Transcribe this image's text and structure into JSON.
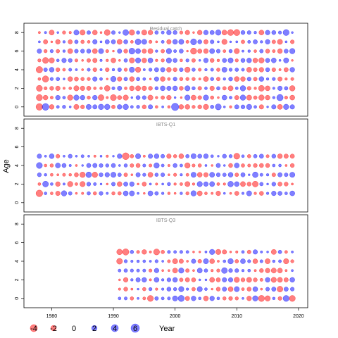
{
  "chart_data": {
    "type": "scatter",
    "subtype": "bubble-residuals",
    "ylabel": "Age",
    "xlabel": "Year",
    "xlim": [
      1975.5,
      2021.5
    ],
    "xticks": [
      1980,
      1990,
      2000,
      2010,
      2020
    ],
    "ylim": [
      -1,
      9
    ],
    "yticks": [
      0,
      2,
      4,
      6,
      8
    ],
    "colors": {
      "positive": "#0000ff",
      "negative": "#ff0000"
    },
    "panels": [
      {
        "title": "Residual catch",
        "years": [
          1978,
          2019
        ],
        "ages": [
          0,
          1,
          2,
          3,
          4,
          5,
          6,
          7,
          8
        ],
        "seed": 11,
        "big": [
          [
            1978,
            0,
            -3.4
          ],
          [
            1979,
            0,
            3.6
          ],
          [
            2000,
            0,
            4.3
          ],
          [
            1978,
            1,
            -2.8
          ],
          [
            1978,
            2,
            -2.6
          ],
          [
            1979,
            3,
            -3.0
          ],
          [
            1978,
            4,
            -3.2
          ],
          [
            1979,
            5,
            -2.6
          ],
          [
            1988,
            1,
            -2.4
          ],
          [
            1989,
            2,
            -2.2
          ],
          [
            1990,
            1,
            -2.6
          ],
          [
            2003,
            6,
            -2.8
          ],
          [
            2009,
            8,
            -2.6
          ],
          [
            2010,
            8,
            -2.8
          ],
          [
            2014,
            2,
            -2.4
          ],
          [
            2017,
            1,
            3.0
          ],
          [
            2018,
            8,
            2.6
          ],
          [
            1993,
            6,
            2.6
          ],
          [
            1994,
            7,
            2.4
          ],
          [
            1989,
            8,
            -2.4
          ],
          [
            1992,
            8,
            2.4
          ],
          [
            2003,
            7,
            2.6
          ],
          [
            2007,
            0,
            2.6
          ]
        ]
      },
      {
        "title": "IBTS-Q1",
        "years": [
          1978,
          2019
        ],
        "ages": [
          1,
          2,
          3,
          4,
          5
        ],
        "seed": 23,
        "big": [
          [
            1978,
            1,
            -3.4
          ],
          [
            1978,
            4,
            2.6
          ],
          [
            1979,
            2,
            2.4
          ],
          [
            1992,
            5,
            -3.6
          ],
          [
            2010,
            5,
            -2.6
          ],
          [
            2009,
            2,
            2.2
          ],
          [
            2013,
            3,
            2.2
          ],
          [
            2013,
            2,
            -2.4
          ],
          [
            1986,
            3,
            2.2
          ],
          [
            1982,
            1,
            2.0
          ],
          [
            2003,
            1,
            2.0
          ]
        ]
      },
      {
        "title": "IBTS-Q3",
        "years": [
          1991,
          2019
        ],
        "ages": [
          0,
          1,
          2,
          3,
          4,
          5
        ],
        "seed": 37,
        "big": [
          [
            1992,
            5,
            -3.0
          ],
          [
            1997,
            5,
            -2.6
          ],
          [
            1991,
            5,
            -2.2
          ],
          [
            1991,
            4,
            -2.4
          ],
          [
            2001,
            0,
            2.8
          ],
          [
            2014,
            0,
            -2.8
          ],
          [
            2018,
            0,
            2.6
          ],
          [
            2019,
            0,
            -2.6
          ],
          [
            2017,
            1,
            -2.4
          ],
          [
            2008,
            3,
            2.4
          ],
          [
            1996,
            0,
            -2.6
          ]
        ]
      }
    ],
    "legend": {
      "values": [
        -4,
        -2,
        0,
        2,
        4,
        6
      ],
      "labels": [
        "-4",
        "-2",
        "0",
        "2",
        "4",
        "6"
      ]
    }
  }
}
